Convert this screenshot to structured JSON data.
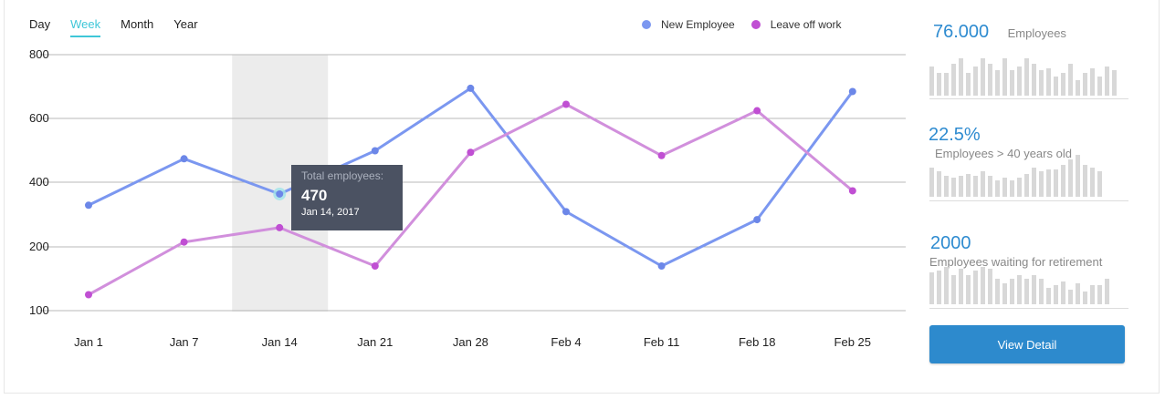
{
  "tabs": [
    {
      "label": "Day",
      "active": false
    },
    {
      "label": "Week",
      "active": true
    },
    {
      "label": "Month",
      "active": false
    },
    {
      "label": "Year",
      "active": false
    }
  ],
  "colors": {
    "new_employee": "#7b97f0",
    "new_employee_dot": "#6c87e8",
    "leave": "#d18fdc",
    "leave_dot": "#c04fd3",
    "accent": "#2e8bd0",
    "tab_active": "#3fc7d8"
  },
  "chart_data": {
    "type": "line",
    "categories": [
      "Jan 1",
      "Jan 7",
      "Jan 14",
      "Jan 21",
      "Jan 28",
      "Feb 4",
      "Feb 11",
      "Feb 18",
      "Feb 25"
    ],
    "series": [
      {
        "name": "New Employee",
        "values": [
          330,
          475,
          365,
          500,
          695,
          310,
          170,
          285,
          685
        ]
      },
      {
        "name": "Leave off work",
        "values": [
          125,
          215,
          260,
          170,
          495,
          645,
          485,
          625,
          375
        ]
      }
    ],
    "y_ticks": [
      "800",
      "600",
      "400",
      "200",
      "100"
    ],
    "ylim": [
      100,
      800
    ],
    "grid": true,
    "highlight_category": "Jan 14",
    "legend_position": "top-right",
    "tooltip": {
      "title": "Total employees:",
      "value": "470",
      "date": "Jan 14, 2017"
    }
  },
  "stats": [
    {
      "value": "76.000",
      "label": "Employees",
      "bars": [
        0.7,
        0.55,
        0.55,
        0.75,
        0.9,
        0.55,
        0.7,
        0.9,
        0.75,
        0.6,
        0.9,
        0.6,
        0.7,
        0.9,
        0.75,
        0.6,
        0.65,
        0.45,
        0.55,
        0.75,
        0.38,
        0.55,
        0.65,
        0.45,
        0.7,
        0.6
      ]
    },
    {
      "value": "22.5%",
      "label": "Employees > 40 years old",
      "bars": [
        0.7,
        0.6,
        0.5,
        0.45,
        0.5,
        0.55,
        0.5,
        0.6,
        0.5,
        0.4,
        0.45,
        0.4,
        0.45,
        0.55,
        0.7,
        0.6,
        0.65,
        0.65,
        0.75,
        0.9,
        1.0,
        0.75,
        0.7,
        0.6
      ]
    },
    {
      "value": "2000",
      "label": "Employees waiting for retirement",
      "bars": [
        0.75,
        0.8,
        0.9,
        0.7,
        0.85,
        0.7,
        0.8,
        0.9,
        0.85,
        0.6,
        0.5,
        0.6,
        0.7,
        0.6,
        0.7,
        0.6,
        0.4,
        0.45,
        0.55,
        0.35,
        0.5,
        0.3,
        0.45,
        0.45,
        0.6
      ]
    }
  ],
  "button_label": "View Detail"
}
